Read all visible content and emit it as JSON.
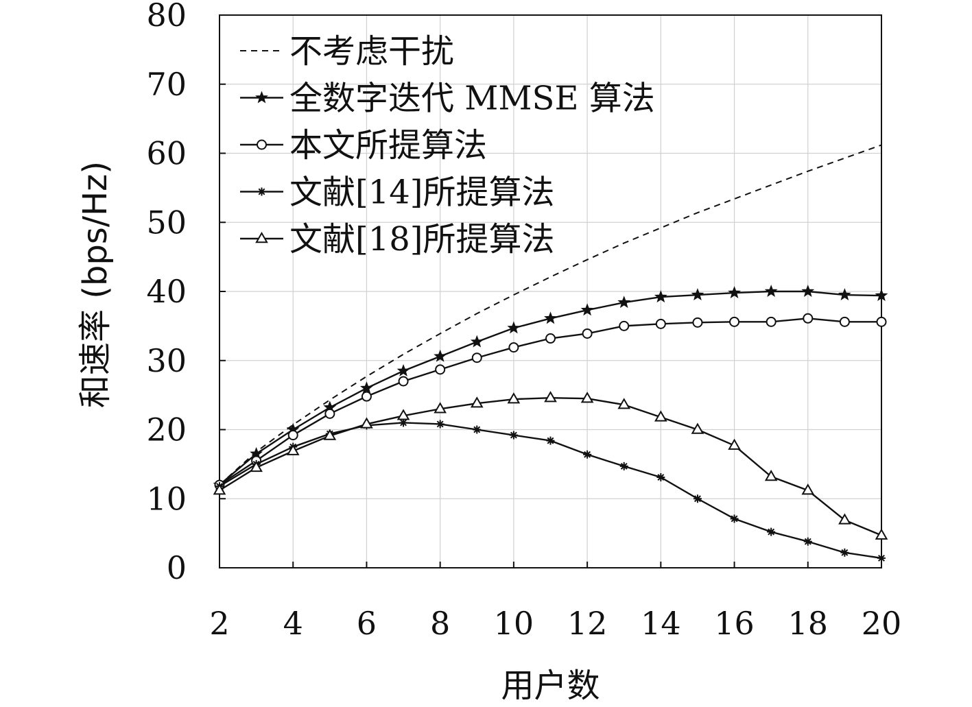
{
  "chart_data": {
    "type": "line",
    "xlabel": "用户数",
    "ylabel": "和速率 (bps/Hz)",
    "xlim": [
      2,
      20
    ],
    "ylim": [
      0,
      80
    ],
    "xticks": [
      2,
      4,
      6,
      8,
      10,
      12,
      14,
      16,
      18,
      20
    ],
    "yticks": [
      0,
      10,
      20,
      30,
      40,
      50,
      60,
      70,
      80
    ],
    "grid": true,
    "legend_position": "top-left",
    "x": [
      2,
      3,
      4,
      5,
      6,
      7,
      8,
      9,
      10,
      11,
      12,
      13,
      14,
      15,
      16,
      17,
      18,
      19,
      20
    ],
    "series": [
      {
        "name": "不考虑干扰",
        "style": "dashed",
        "marker": "none",
        "x": [
          2,
          3,
          4,
          5,
          6,
          7,
          8,
          9,
          10,
          11,
          12,
          13,
          14,
          15,
          16,
          17,
          18,
          19,
          20
        ],
        "values": [
          12,
          16.8,
          20.7,
          24.3,
          27.7,
          30.9,
          33.9,
          36.8,
          39.5,
          42.1,
          44.6,
          47.0,
          49.2,
          51.4,
          53.4,
          55.4,
          57.4,
          59.3,
          61.2
        ]
      },
      {
        "name": "全数字迭代 MMSE 算法",
        "style": "solid",
        "marker": "star",
        "x": [
          2,
          3,
          4,
          5,
          6,
          7,
          8,
          9,
          10,
          11,
          12,
          13,
          14,
          15,
          16,
          17,
          18,
          19,
          20
        ],
        "values": [
          12,
          16.5,
          20,
          23.2,
          26,
          28.5,
          30.6,
          32.7,
          34.7,
          36.1,
          37.3,
          38.4,
          39.2,
          39.5,
          39.8,
          40,
          40,
          39.5,
          39.4
        ]
      },
      {
        "name": "本文所提算法",
        "style": "solid",
        "marker": "circle",
        "x": [
          2,
          3,
          4,
          5,
          6,
          7,
          8,
          9,
          10,
          11,
          12,
          13,
          14,
          15,
          16,
          17,
          18,
          19,
          20
        ],
        "values": [
          12,
          15.5,
          19.2,
          22.3,
          24.8,
          27,
          28.7,
          30.4,
          31.9,
          33.2,
          33.9,
          35,
          35.3,
          35.5,
          35.6,
          35.6,
          36.1,
          35.6,
          35.6
        ]
      },
      {
        "name": "文献[14]所提算法",
        "style": "solid",
        "marker": "asterisk",
        "x": [
          2,
          3,
          4,
          5,
          6,
          7,
          8,
          9,
          10,
          11,
          12,
          13,
          14,
          15,
          16,
          17,
          18,
          19,
          20
        ],
        "values": [
          11.8,
          15,
          17.5,
          19.4,
          20.6,
          21,
          20.8,
          20,
          19.2,
          18.4,
          16.4,
          14.7,
          13.1,
          10,
          7.1,
          5.2,
          3.8,
          2.2,
          1.4
        ]
      },
      {
        "name": "文献[18]所提算法",
        "style": "solid",
        "marker": "triangle",
        "x": [
          2,
          3,
          4,
          5,
          6,
          7,
          8,
          9,
          10,
          11,
          12,
          13,
          14,
          15,
          16,
          17,
          18,
          19,
          20
        ],
        "values": [
          11.2,
          14.5,
          16.9,
          19.1,
          20.8,
          22,
          23,
          23.8,
          24.4,
          24.6,
          24.5,
          23.6,
          21.8,
          20,
          17.7,
          13.2,
          11.2,
          6.9,
          4.7
        ]
      }
    ]
  }
}
